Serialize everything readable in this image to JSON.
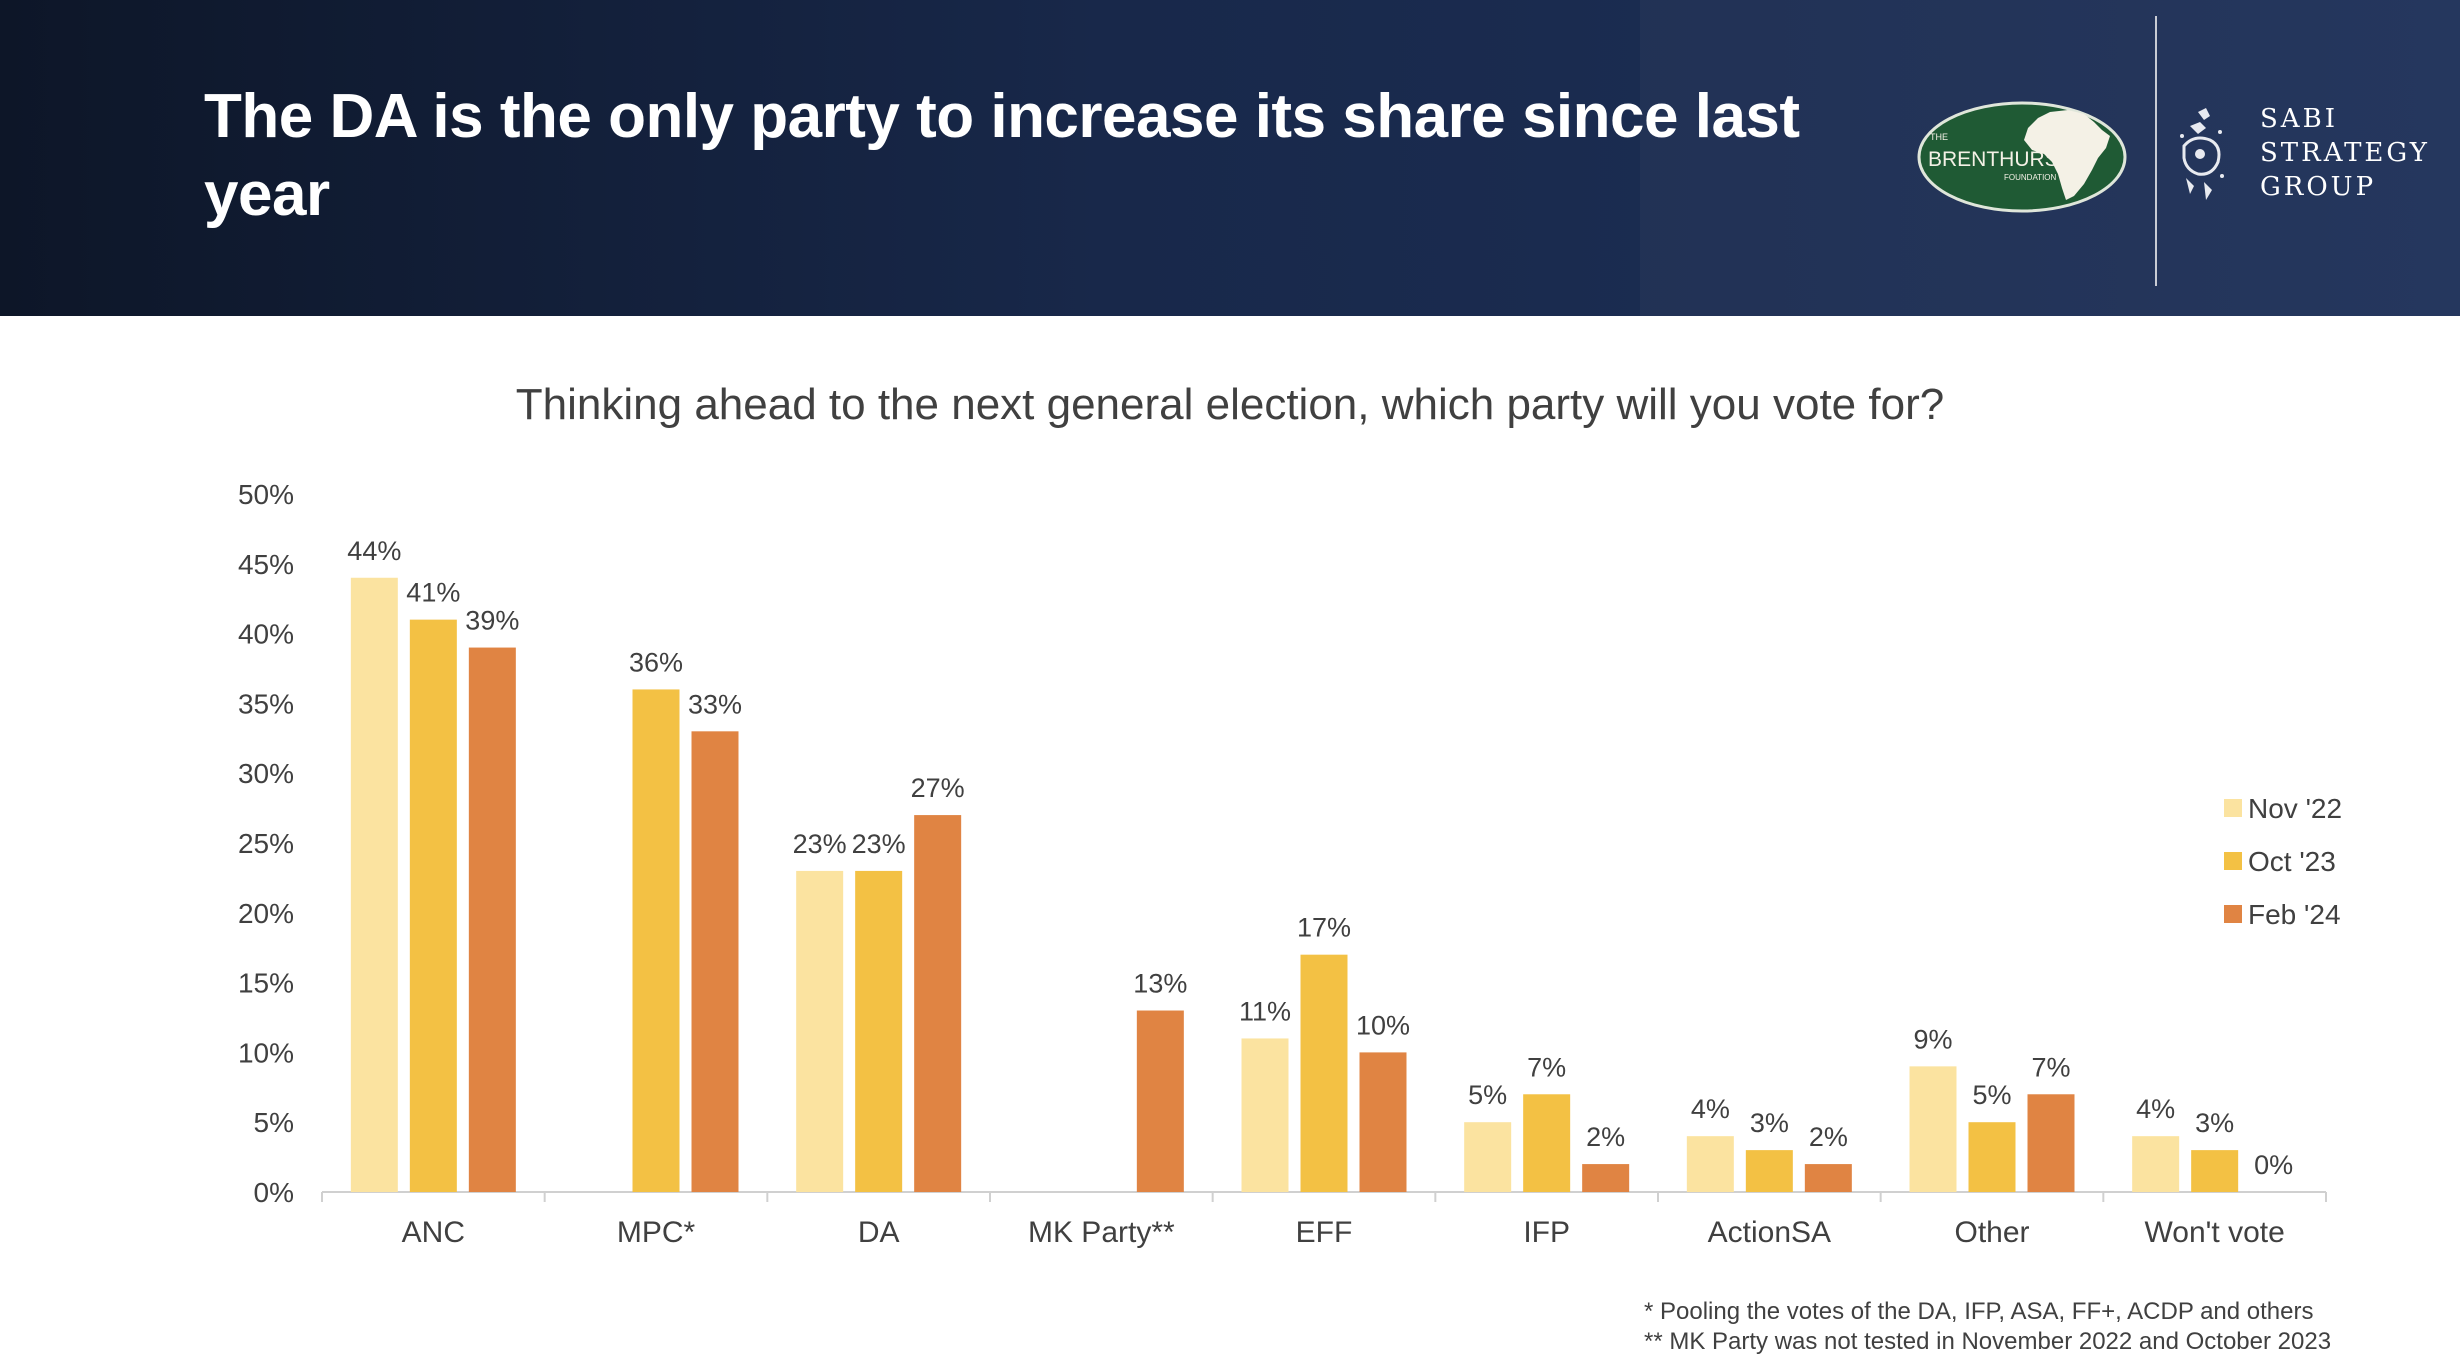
{
  "header": {
    "title": "The DA is the only party to increase its share since last year",
    "brenthurst_logo": {
      "small": "THE",
      "name": "BRENTHURST",
      "sub": "FOUNDATION"
    },
    "sabi_logo": {
      "line1": "SABI",
      "line2": "STRATEGY",
      "line3": "GROUP"
    }
  },
  "footnotes": [
    "* Pooling the votes of the DA, IFP, ASA, FF+, ACDP and others",
    "** MK Party was not tested in November 2022 and  October 2023"
  ],
  "colors": {
    "header_bg": "#18284a",
    "nov22": "#FBE3A0",
    "oct23": "#F3C144",
    "feb24": "#E08443",
    "text": "#404040"
  },
  "chart_data": {
    "type": "bar",
    "title": "Thinking ahead to the next general election, which party will you vote for?",
    "xlabel": "",
    "ylabel": "",
    "ylim": [
      0,
      50
    ],
    "yticks": [
      "0%",
      "5%",
      "10%",
      "15%",
      "20%",
      "25%",
      "30%",
      "35%",
      "40%",
      "45%",
      "50%"
    ],
    "categories": [
      "ANC",
      "MPC*",
      "DA",
      "MK Party**",
      "EFF",
      "IFP",
      "ActionSA",
      "Other",
      "Won't vote"
    ],
    "legend_position": "right",
    "series": [
      {
        "name": "Nov '22",
        "color": "#FBE3A0",
        "values": [
          44,
          null,
          23,
          null,
          11,
          5,
          4,
          9,
          4
        ],
        "labels": [
          "44%",
          null,
          "23%",
          null,
          "11%",
          "5%",
          "4%",
          "9%",
          "4%"
        ]
      },
      {
        "name": "Oct '23",
        "color": "#F3C144",
        "values": [
          41,
          36,
          23,
          null,
          17,
          7,
          3,
          5,
          3
        ],
        "labels": [
          "41%",
          "36%",
          "23%",
          null,
          "17%",
          "7%",
          "3%",
          "5%",
          "3%"
        ]
      },
      {
        "name": "Feb '24",
        "color": "#E08443",
        "values": [
          39,
          33,
          27,
          13,
          10,
          2,
          2,
          7,
          0
        ],
        "labels": [
          "39%",
          "33%",
          "27%",
          "13%",
          "10%",
          "2%",
          "2%",
          "7%",
          "0%"
        ]
      }
    ]
  }
}
